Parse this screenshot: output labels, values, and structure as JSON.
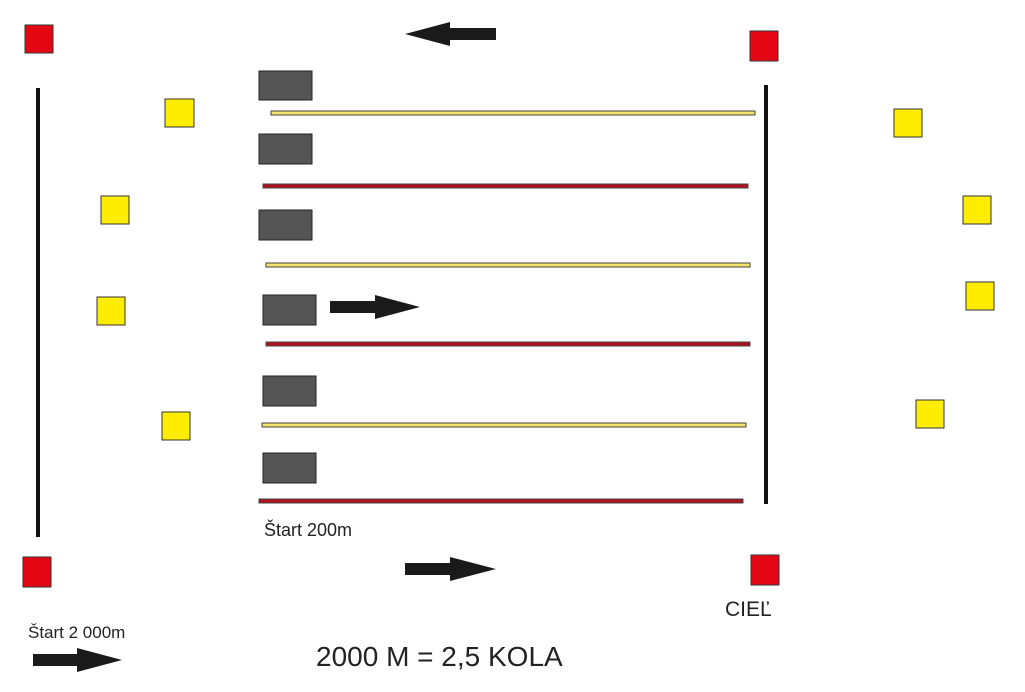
{
  "labels": {
    "start_short": "Štart 200m",
    "finish": "CIEĽ",
    "start_long": "Štart 2 000m",
    "note": "2000 M = 2,5 KOLA"
  }
}
